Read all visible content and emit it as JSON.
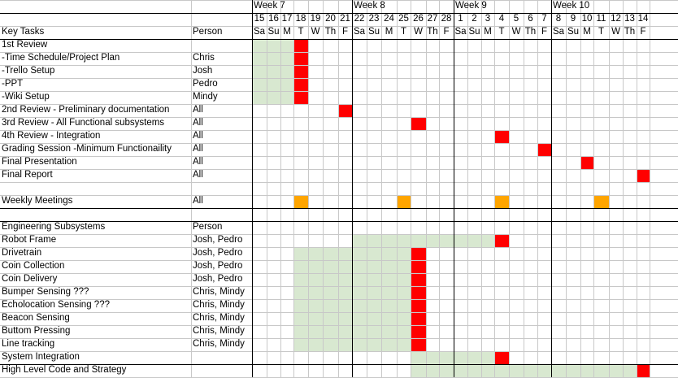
{
  "weeks": [
    "Week 7",
    "Week 8",
    "Week 9",
    "Week 10"
  ],
  "days": [
    "15",
    "16",
    "17",
    "18",
    "19",
    "20",
    "21",
    "22",
    "23",
    "24",
    "25",
    "26",
    "27",
    "28",
    "1",
    "2",
    "3",
    "4",
    "5",
    "6",
    "7",
    "8",
    "9",
    "10",
    "11",
    "12",
    "13",
    "14"
  ],
  "weekdays": [
    "Sa",
    "Su",
    "M",
    "T",
    "W",
    "Th",
    "F",
    "Sa",
    "Su",
    "M",
    "T",
    "W",
    "Th",
    "F",
    "Sa",
    "Su",
    "M",
    "T",
    "W",
    "Th",
    "F",
    "Sa",
    "Su",
    "M",
    "T",
    "W",
    "Th",
    "F"
  ],
  "header": {
    "task_col": "Key Tasks",
    "person_col": "Person"
  },
  "colors": {
    "deadline": "#ff0000",
    "meeting": "#ffa500",
    "span": "#d8e8d0",
    "grid": "#c8c8c8"
  },
  "rows": [
    {
      "task": "1st Review",
      "person": "",
      "spans": [
        [
          0,
          2
        ]
      ],
      "marks": [
        [
          3,
          "deadline"
        ]
      ]
    },
    {
      "task": "-Time Schedule/Project Plan",
      "person": "Chris",
      "spans": [
        [
          0,
          2
        ]
      ],
      "marks": [
        [
          3,
          "deadline"
        ]
      ]
    },
    {
      "task": "-Trello Setup",
      "person": "Josh",
      "spans": [
        [
          0,
          2
        ]
      ],
      "marks": [
        [
          3,
          "deadline"
        ]
      ]
    },
    {
      "task": "-PPT",
      "person": "Pedro",
      "spans": [
        [
          0,
          2
        ]
      ],
      "marks": [
        [
          3,
          "deadline"
        ]
      ]
    },
    {
      "task": "-Wiki Setup",
      "person": "Mindy",
      "spans": [
        [
          0,
          2
        ]
      ],
      "marks": [
        [
          3,
          "deadline"
        ]
      ]
    },
    {
      "task": "2nd Review - Preliminary documentation",
      "person": "All",
      "spans": [],
      "marks": [
        [
          6,
          "deadline"
        ]
      ]
    },
    {
      "task": "3rd Review - All Functional subsystems",
      "person": "All",
      "spans": [],
      "marks": [
        [
          11,
          "deadline"
        ]
      ]
    },
    {
      "task": "4th Review - Integration",
      "person": "All",
      "spans": [],
      "marks": [
        [
          17,
          "deadline"
        ]
      ]
    },
    {
      "task": "Grading Session -Minimum Functionaility",
      "person": "All",
      "spans": [],
      "marks": [
        [
          20,
          "deadline"
        ]
      ]
    },
    {
      "task": "Final Presentation",
      "person": "All",
      "spans": [],
      "marks": [
        [
          23,
          "deadline"
        ]
      ]
    },
    {
      "task": "Final Report",
      "person": "All",
      "spans": [],
      "marks": [
        [
          27,
          "deadline"
        ]
      ]
    },
    {
      "task": "",
      "person": "",
      "spans": [],
      "marks": []
    },
    {
      "task": "Weekly Meetings",
      "person": "All",
      "spans": [],
      "marks": [
        [
          3,
          "meeting"
        ],
        [
          10,
          "meeting"
        ],
        [
          17,
          "meeting"
        ],
        [
          24,
          "meeting"
        ]
      ]
    },
    {
      "task": "",
      "person": "",
      "spans": [],
      "marks": []
    },
    {
      "task": "Engineering Subsystems",
      "person": "Person",
      "spans": [],
      "marks": []
    },
    {
      "task": "Robot Frame",
      "person": "Josh, Pedro",
      "spans": [
        [
          7,
          16
        ]
      ],
      "marks": [
        [
          17,
          "deadline"
        ]
      ]
    },
    {
      "task": "Drivetrain",
      "person": "Josh, Pedro",
      "spans": [
        [
          3,
          10
        ]
      ],
      "marks": [
        [
          11,
          "deadline"
        ]
      ]
    },
    {
      "task": "Coin Collection",
      "person": "Josh, Pedro",
      "spans": [
        [
          3,
          10
        ]
      ],
      "marks": [
        [
          11,
          "deadline"
        ]
      ]
    },
    {
      "task": "Coin Delivery",
      "person": "Josh, Pedro",
      "spans": [
        [
          3,
          10
        ]
      ],
      "marks": [
        [
          11,
          "deadline"
        ]
      ]
    },
    {
      "task": "Bumper Sensing ???",
      "person": "Chris, Mindy",
      "spans": [
        [
          3,
          10
        ]
      ],
      "marks": [
        [
          11,
          "deadline"
        ]
      ]
    },
    {
      "task": "Echolocation Sensing ???",
      "person": "Chris, Mindy",
      "spans": [
        [
          3,
          10
        ]
      ],
      "marks": [
        [
          11,
          "deadline"
        ]
      ]
    },
    {
      "task": "Beacon Sensing",
      "person": "Chris, Mindy",
      "spans": [
        [
          3,
          10
        ]
      ],
      "marks": [
        [
          11,
          "deadline"
        ]
      ]
    },
    {
      "task": "Buttom Pressing",
      "person": "Chris, Mindy",
      "spans": [
        [
          3,
          10
        ]
      ],
      "marks": [
        [
          11,
          "deadline"
        ]
      ]
    },
    {
      "task": "Line tracking",
      "person": "Chris, Mindy",
      "spans": [
        [
          3,
          10
        ]
      ],
      "marks": [
        [
          11,
          "deadline"
        ]
      ]
    },
    {
      "task": "System Integration",
      "person": "",
      "spans": [
        [
          11,
          16
        ]
      ],
      "marks": [
        [
          17,
          "deadline"
        ]
      ]
    },
    {
      "task": "High Level Code and Strategy",
      "person": "",
      "spans": [
        [
          11,
          26
        ]
      ],
      "marks": [
        [
          27,
          "deadline"
        ]
      ]
    }
  ]
}
